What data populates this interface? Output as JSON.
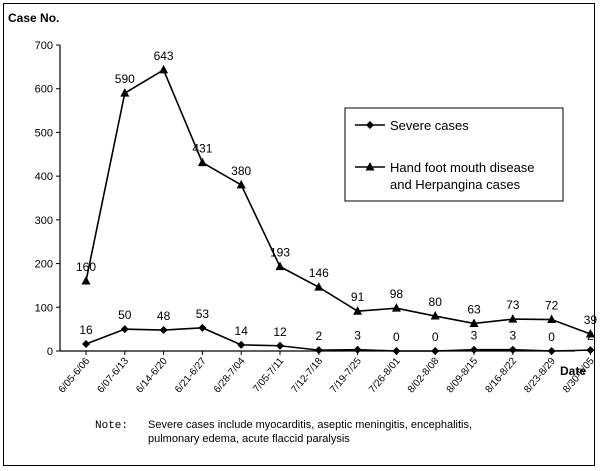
{
  "chart_data": {
    "type": "line",
    "ylabel": "Case No.",
    "xlabel": "Date",
    "ylim": [
      0,
      700
    ],
    "yticks": [
      0,
      100,
      200,
      300,
      400,
      500,
      600,
      700
    ],
    "categories": [
      "6/05-6/06",
      "6/07-6/13",
      "6/14-6/20",
      "6/21-6/27",
      "6/28-7/04",
      "7/05-7/11",
      "7/12-7/18",
      "7/19-7/25",
      "7/26-8/01",
      "8/02-8/08",
      "8/09-8/15",
      "8/16-8/22",
      "8/23-8/29",
      "8/30-9/05"
    ],
    "series": [
      {
        "name": "Severe cases",
        "marker": "diamond",
        "values": [
          16,
          50,
          48,
          53,
          14,
          12,
          2,
          3,
          0,
          0,
          3,
          3,
          0,
          2
        ]
      },
      {
        "name": "Hand foot mouth disease and Herpangina cases",
        "marker": "triangle",
        "values": [
          160,
          590,
          643,
          431,
          380,
          193,
          146,
          91,
          98,
          80,
          63,
          73,
          72,
          39
        ]
      }
    ],
    "legend_position": "right",
    "grid": false
  },
  "note": {
    "label": "Note:",
    "line1": "Severe cases include myocarditis, aseptic meningitis, encephalitis,",
    "line2": "pulmonary edema, acute flaccid paralysis"
  }
}
